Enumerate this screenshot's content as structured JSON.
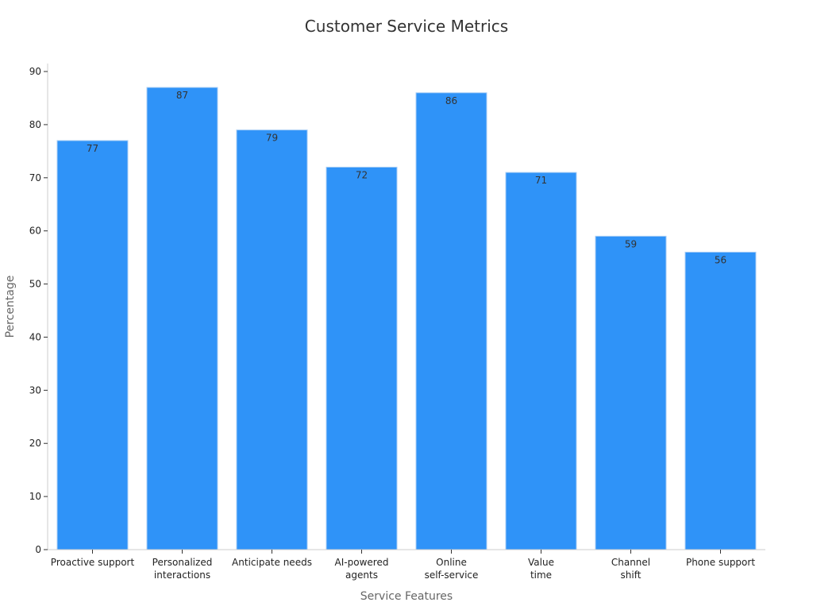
{
  "chart_data": {
    "type": "bar",
    "title": "Customer Service Metrics",
    "xlabel": "Service Features",
    "ylabel": "Percentage",
    "categories": [
      [
        "Proactive support"
      ],
      [
        "Personalized",
        "interactions"
      ],
      [
        "Anticipate needs"
      ],
      [
        "AI-powered",
        "agents"
      ],
      [
        "Online",
        "self-service"
      ],
      [
        "Value",
        "time"
      ],
      [
        "Channel",
        "shift"
      ],
      [
        "Phone support"
      ]
    ],
    "values": [
      77,
      87,
      79,
      72,
      86,
      71,
      59,
      56
    ],
    "ylim": [
      0,
      91.5
    ],
    "yticks": [
      0,
      10,
      20,
      30,
      40,
      50,
      60,
      70,
      80,
      90
    ],
    "grid": false,
    "bar_color": "#2f93f8",
    "bar_edge_color": "#a9cef5"
  }
}
